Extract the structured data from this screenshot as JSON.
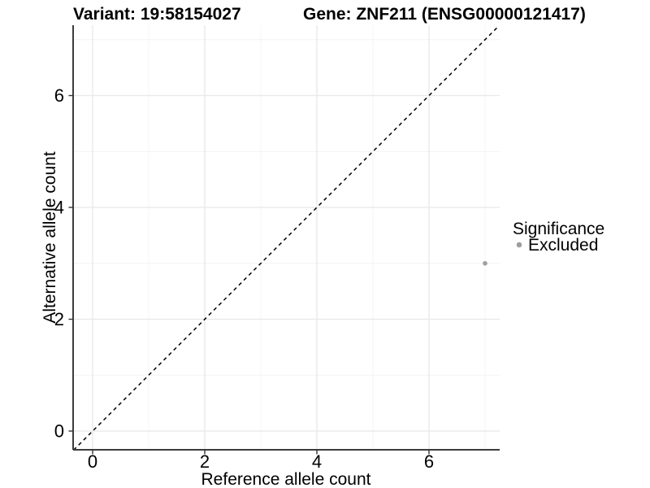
{
  "chart_data": {
    "type": "scatter",
    "title_left": "Variant: 19:58154027",
    "title_right": "Gene: ZNF211 (ENSG00000121417)",
    "xlabel": "Reference allele count",
    "ylabel": "Alternative allele count",
    "x_ticks": [
      0,
      2,
      4,
      6
    ],
    "y_ticks": [
      0,
      2,
      4,
      6
    ],
    "x_minor_gridlines": [
      1,
      3,
      5,
      7
    ],
    "y_minor_gridlines": [
      1,
      3,
      5,
      7
    ],
    "xlim": [
      -0.35,
      7.26
    ],
    "ylim": [
      -0.34,
      7.25
    ],
    "grid": "major+minor",
    "legend_position": "right",
    "identity_line": {
      "style": "dashed",
      "slope": 1,
      "intercept": 0,
      "color": "#000000"
    },
    "series": [
      {
        "name": "Excluded",
        "color": "#9e9e9e",
        "points": [
          {
            "x": 7,
            "y": 3
          }
        ]
      }
    ],
    "legend": {
      "title": "Significance",
      "entries": [
        {
          "label": "Excluded",
          "color": "#9e9e9e"
        }
      ]
    }
  },
  "colors": {
    "axis_line": "#3c3c3c",
    "tick_mark": "#333333",
    "major_grid": "#e8e8e8",
    "minor_grid": "#f3f3f3",
    "background": "#ffffff"
  }
}
